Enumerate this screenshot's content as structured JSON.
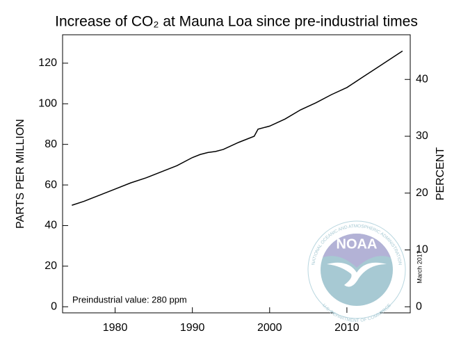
{
  "chart_data": {
    "type": "line",
    "title": "Increase of CO₂ at Mauna Loa since pre-industrial times",
    "ylabel": "PARTS PER MILLION",
    "y2label": "PERCENT",
    "annotation": "Preindustrial value: 280 ppm",
    "date_note": "March 2017",
    "logo": {
      "name": "NOAA",
      "top_text": "NATIONAL OCEANIC AND ATMOSPHERIC ADMINISTRATION",
      "bottom_text": "U.S. DEPARTMENT OF COMMERCE"
    },
    "x": [
      1974.4,
      1976,
      1978,
      1980,
      1982,
      1984,
      1986,
      1988,
      1990,
      1991,
      1992,
      1993,
      1994,
      1996,
      1998,
      1998.5,
      2000,
      2002,
      2004,
      2006,
      2008,
      2010,
      2012,
      2014,
      2016,
      2017.2
    ],
    "values": [
      50,
      52,
      55,
      58,
      61,
      63.5,
      66.5,
      69.5,
      73.5,
      75,
      76,
      76.5,
      77.5,
      81,
      84,
      87.5,
      89,
      92.5,
      97,
      100.5,
      104.5,
      108,
      113,
      118,
      123,
      126
    ],
    "color": "#000000",
    "xlim": [
      1973.2,
      2018.2
    ],
    "xticks": [
      1980,
      1990,
      2000,
      2010
    ],
    "ylim": [
      -3,
      134
    ],
    "yticks": [
      0,
      20,
      40,
      60,
      80,
      100,
      120
    ],
    "y2lim": [
      -1.07,
      47.86
    ],
    "y2ticks": [
      0,
      10,
      20,
      30,
      40
    ]
  }
}
